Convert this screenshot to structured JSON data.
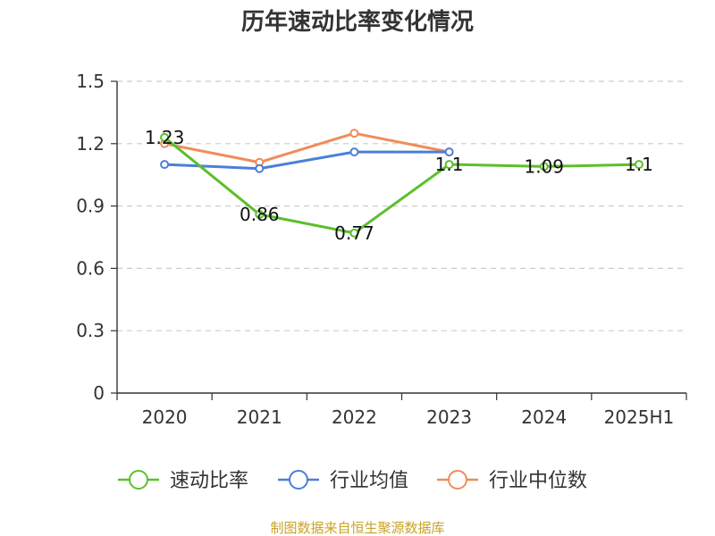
{
  "chart_data": {
    "type": "line",
    "title": "历年速动比率变化情况",
    "categories": [
      "2020",
      "2021",
      "2022",
      "2023",
      "2024",
      "2025H1"
    ],
    "ylim": [
      0,
      1.5
    ],
    "yticks": [
      "0",
      "0.3",
      "0.6",
      "0.9",
      "1.2",
      "1.5"
    ],
    "grid": true,
    "legend_position": "bottom",
    "series": [
      {
        "name": "速动比率",
        "color": "#5cbf2a",
        "values": [
          1.23,
          0.86,
          0.77,
          1.1,
          1.09,
          1.1
        ],
        "labels": [
          "1.23",
          "0.86",
          "0.77",
          "1.1",
          "1.09",
          "1.1"
        ]
      },
      {
        "name": "行业均值",
        "color": "#4a7fd8",
        "values": [
          1.1,
          1.08,
          1.16,
          1.16,
          null,
          null
        ]
      },
      {
        "name": "行业中位数",
        "color": "#f08c5a",
        "values": [
          1.2,
          1.11,
          1.25,
          1.16,
          null,
          null
        ]
      }
    ],
    "source": "制图数据来自恒生聚源数据库"
  }
}
